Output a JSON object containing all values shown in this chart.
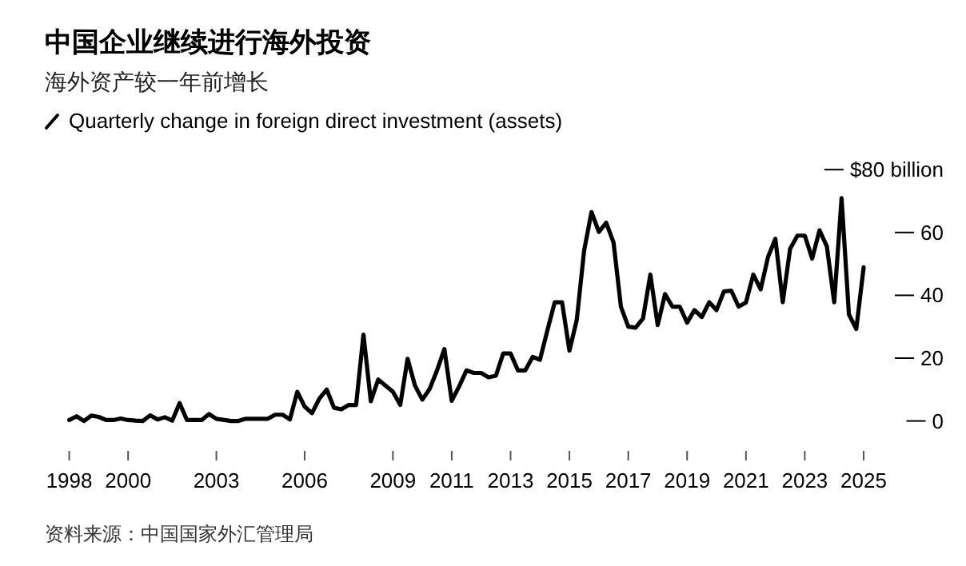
{
  "chart_data": {
    "type": "line",
    "title": "中国企业继续进行海外投资",
    "subtitle": "海外资产较一年前增长",
    "annotations": [
      "资料来源：中国国家外汇管理局"
    ],
    "legend": "top left",
    "xlim": [
      1998,
      2025
    ],
    "xticks": [
      1998,
      2000,
      2003,
      2006,
      2009,
      2011,
      2013,
      2015,
      2017,
      2019,
      2021,
      2023,
      2025
    ],
    "ylim": [
      0,
      80
    ],
    "yticks": [
      0,
      20,
      40,
      60,
      {
        "value": 80,
        "label": "$80 billion"
      }
    ],
    "grid": false,
    "series": [
      {
        "name": "Quarterly change in foreign direct investment (assets)",
        "color": "#000000",
        "x": [
          1998.0,
          1998.25,
          1998.5,
          1998.75,
          1999.0,
          1999.25,
          1999.5,
          1999.75,
          2000.0,
          2000.25,
          2000.5,
          2000.75,
          2001.0,
          2001.25,
          2001.5,
          2001.75,
          2002.0,
          2002.25,
          2002.5,
          2002.75,
          2003.0,
          2003.5,
          2003.75,
          2004.0,
          2004.75,
          2005.0,
          2005.25,
          2005.5,
          2005.75,
          2006.0,
          2006.25,
          2006.5,
          2006.75,
          2007.0,
          2007.25,
          2007.5,
          2007.75,
          2008.0,
          2008.25,
          2008.5,
          2009.0,
          2009.25,
          2009.5,
          2009.75,
          2010.0,
          2010.25,
          2010.5,
          2010.75,
          2011.0,
          2011.25,
          2011.5,
          2011.75,
          2012.0,
          2012.25,
          2012.5,
          2012.75,
          2013.0,
          2013.25,
          2013.5,
          2013.75,
          2014.0,
          2014.25,
          2014.5,
          2014.75,
          2015.0,
          2015.25,
          2015.5,
          2015.75,
          2016.0,
          2016.25,
          2016.5,
          2016.75,
          2017.0,
          2017.25,
          2017.5,
          2017.75,
          2018.0,
          2018.25,
          2018.5,
          2018.75,
          2019.0,
          2019.25,
          2019.5,
          2019.75,
          2020.0,
          2020.25,
          2020.5,
          2020.75,
          2021.0,
          2021.25,
          2021.5,
          2021.75,
          2022.0,
          2022.25,
          2022.5,
          2022.75,
          2023.0,
          2023.25,
          2023.5,
          2023.75,
          2024.0,
          2024.25,
          2024.5,
          2024.75,
          2025.0
        ],
        "values": [
          0.3,
          1.5,
          0,
          1.7,
          1.3,
          0.3,
          0.3,
          0.8,
          0.3,
          0.1,
          0,
          1.8,
          0.5,
          1.2,
          0.1,
          5.7,
          0.3,
          0.3,
          0.3,
          2.2,
          0.7,
          0,
          0,
          0.7,
          0.7,
          2.0,
          2.0,
          0.5,
          9.3,
          4.6,
          2.5,
          7.1,
          10.0,
          4.2,
          3.7,
          5.1,
          5.1,
          27.5,
          6.3,
          13.2,
          9.3,
          5.1,
          19.8,
          11.3,
          6.8,
          10.2,
          16.1,
          22.9,
          6.4,
          11.0,
          16.1,
          15.3,
          15.3,
          13.9,
          14.4,
          21.5,
          21.5,
          16.1,
          16.1,
          20.4,
          19.5,
          28.8,
          37.8,
          37.8,
          22.4,
          32.2,
          54.3,
          66.5,
          60.2,
          63.1,
          56.8,
          36.4,
          30.0,
          29.7,
          32.6,
          46.6,
          30.5,
          40.4,
          36.4,
          36.4,
          31.3,
          35.3,
          33.1,
          37.8,
          35.3,
          41.2,
          41.5,
          36.4,
          37.7,
          46.6,
          41.9,
          52.2,
          58.0,
          37.8,
          54.8,
          59.0,
          59.0,
          51.7,
          60.7,
          55.6,
          37.8,
          70.9,
          33.9,
          29.3,
          48.9
        ]
      }
    ]
  }
}
